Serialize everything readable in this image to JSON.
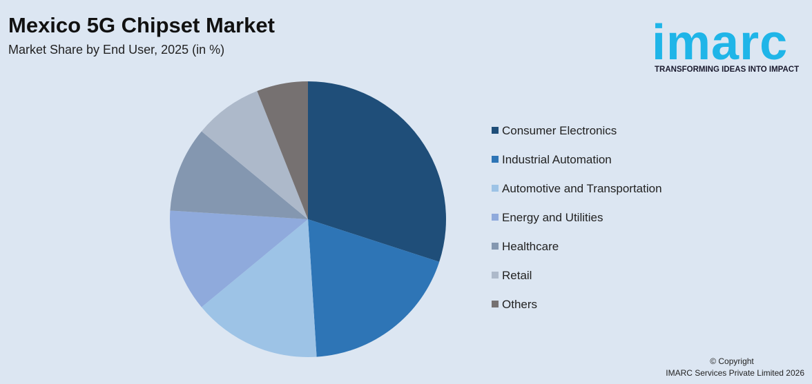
{
  "chart_data": {
    "type": "pie",
    "title": "Mexico 5G Chipset Market",
    "subtitle": "Market Share by End User, 2025 (in %)",
    "categories": [
      "Consumer Electronics",
      "Industrial Automation",
      "Automotive and Transportation",
      "Energy and Utilities",
      "Healthcare",
      "Retail",
      "Others"
    ],
    "values": [
      30,
      19,
      15,
      12,
      10,
      8,
      6
    ],
    "colors": [
      "#1f4e79",
      "#2e75b6",
      "#9dc3e6",
      "#8faadc",
      "#8497b0",
      "#adb9ca",
      "#767171"
    ],
    "legend": "right"
  },
  "logo": {
    "name": "imarc",
    "tagline": "TRANSFORMING IDEAS INTO IMPACT"
  },
  "footer": {
    "copyright": "© Copyright",
    "owner": "IMARC Services Private Limited 2026"
  }
}
